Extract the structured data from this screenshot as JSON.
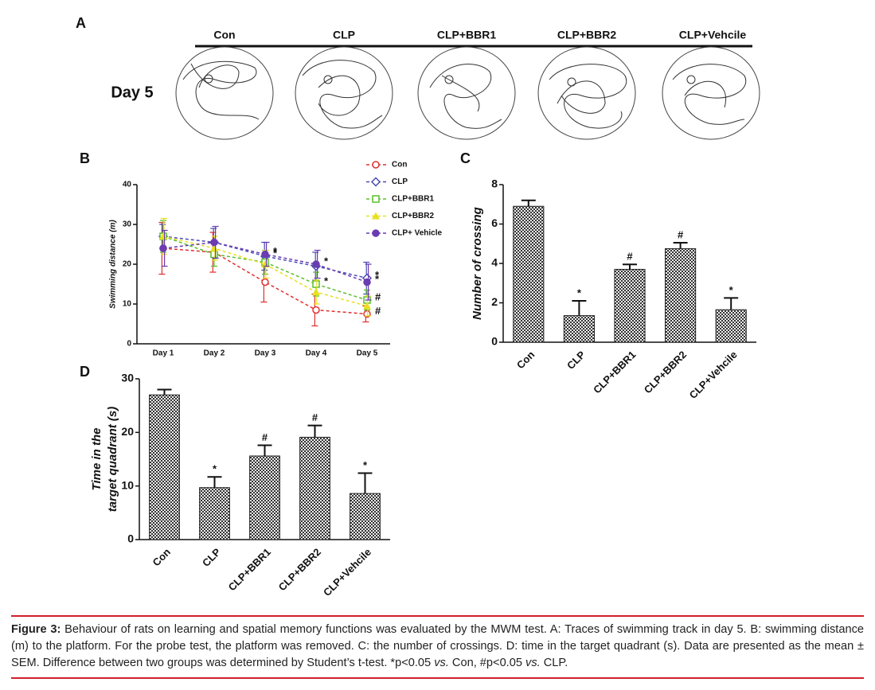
{
  "panel_a": {
    "label": "A",
    "row_label": "Day 5",
    "groups": [
      "Con",
      "CLP",
      "CLP+BBR1",
      "CLP+BBR2",
      "CLP+Vehcile"
    ]
  },
  "chart_data": [
    {
      "type": "line",
      "label": "B",
      "ylabel": "Swimming distance (m)",
      "categories": [
        "Day 1",
        "Day 2",
        "Day 3",
        "Day 4",
        "Day 5"
      ],
      "ylim": [
        0,
        40
      ],
      "yticks": [
        0,
        10,
        20,
        30,
        40
      ],
      "series": [
        {
          "name": "Con",
          "color": "#e03030",
          "marker": "circle",
          "values": [
            24,
            23,
            15.5,
            8.5,
            7.5
          ],
          "errors": [
            6.5,
            5,
            5,
            4,
            2
          ]
        },
        {
          "name": "CLP",
          "color": "#4a4ab8",
          "marker": "diamond",
          "values": [
            27,
            25.5,
            22,
            19.5,
            16.5
          ],
          "errors": [
            3,
            3.5,
            3.5,
            3.5,
            4
          ]
        },
        {
          "name": "CLP+BBR1",
          "color": "#5cbf2a",
          "marker": "square",
          "values": [
            27,
            22.5,
            20.5,
            15,
            11
          ],
          "errors": [
            4,
            3,
            3,
            3,
            2.5
          ]
        },
        {
          "name": "CLP+BBR2",
          "color": "#e8e020",
          "marker": "triangle",
          "values": [
            27,
            24,
            20,
            13,
            9.5
          ],
          "errors": [
            4.5,
            3,
            3.5,
            3,
            2.5
          ]
        },
        {
          "name": "CLP+ Vehicle",
          "color": "#6a3cb0",
          "marker": "dot",
          "values": [
            24,
            25.5,
            22.5,
            20,
            15.5
          ],
          "errors": [
            4.5,
            4,
            3,
            3.5,
            4.5
          ]
        }
      ],
      "annotations": [
        {
          "text": "*",
          "series": 1,
          "index": 2
        },
        {
          "text": "*",
          "series": 4,
          "index": 2
        },
        {
          "text": "*",
          "series": 2,
          "index": 3
        },
        {
          "text": "*",
          "series": 4,
          "index": 3
        },
        {
          "text": "*",
          "series": 1,
          "index": 4
        },
        {
          "text": "*",
          "series": 4,
          "index": 4
        },
        {
          "text": "#",
          "series": 2,
          "index": 4
        },
        {
          "text": "#",
          "series": 0,
          "index": 4
        }
      ]
    },
    {
      "type": "bar",
      "label": "C",
      "ylabel": "Number of crossing",
      "categories": [
        "Con",
        "CLP",
        "CLP+BBR1",
        "CLP+BBR2",
        "CLP+Vehcile"
      ],
      "values": [
        6.9,
        1.35,
        3.7,
        4.75,
        1.65
      ],
      "errors": [
        0.3,
        0.75,
        0.25,
        0.3,
        0.6
      ],
      "markers": [
        null,
        "*",
        "#",
        "#",
        "*"
      ],
      "ylim": [
        0,
        8
      ],
      "yticks": [
        0,
        2,
        4,
        6,
        8
      ]
    },
    {
      "type": "bar",
      "label": "D",
      "ylabel": [
        "Time in the",
        "target quadrant (s)"
      ],
      "categories": [
        "Con",
        "CLP",
        "CLP+BBR1",
        "CLP+BBR2",
        "CLP+Vehcile"
      ],
      "values": [
        27,
        9.7,
        15.6,
        19.1,
        8.6
      ],
      "errors": [
        1,
        2,
        2,
        2.2,
        3.8
      ],
      "markers": [
        null,
        "*",
        "#",
        "#",
        "*"
      ],
      "ylim": [
        0,
        30
      ],
      "yticks": [
        0,
        10,
        20,
        30
      ]
    }
  ],
  "caption": {
    "lead": "Figure 3:",
    "parts": [
      "Behaviour of rats on learning and spatial memory functions was evaluated by the MWM test. A: Traces of swimming track in day 5. B: swimming distance (m) to the platform. For the probe test, the platform was removed. C: the number of crossings. D: time in the target quadrant (s). Data are presented as the mean ± SEM. Difference between two groups was determined by Student’s t-test. *p<0.05 ",
      "vs.",
      " Con, #p<0.05 ",
      "vs.",
      " CLP."
    ]
  }
}
